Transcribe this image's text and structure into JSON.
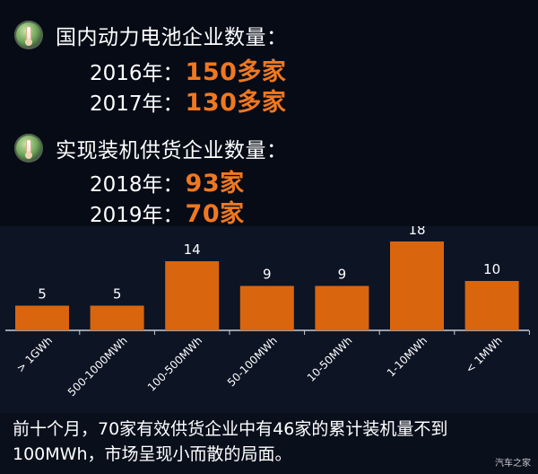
{
  "section1": {
    "title": "国内动力电池企业数量：",
    "rows": [
      {
        "year": "2016年：",
        "value": "150多家"
      },
      {
        "year": "2017年：",
        "value": "130多家"
      }
    ]
  },
  "section2": {
    "title": "实现装机供货企业数量：",
    "rows": [
      {
        "year": "2018年：",
        "value": "93家"
      },
      {
        "year": "2019年：",
        "value": "70家"
      }
    ]
  },
  "colors": {
    "bar": "#d9660f",
    "highlight": "#f07820",
    "background": "#0a0f1c"
  },
  "chart_data": {
    "type": "bar",
    "categories": [
      "> 1GWh",
      "500-1000MWh",
      "100-500MWh",
      "50-100MWh",
      "10-50MWh",
      "1-10MWh",
      "< 1MWh"
    ],
    "values": [
      5,
      5,
      14,
      9,
      9,
      18,
      10
    ],
    "ylim": [
      0,
      18
    ],
    "grid": false,
    "legend": "none"
  },
  "note": "前十个月，70家有效供货企业中有46家的累计装机量不到100MWh，市场呈现小而散的局面。",
  "watermark": "汽车之家"
}
